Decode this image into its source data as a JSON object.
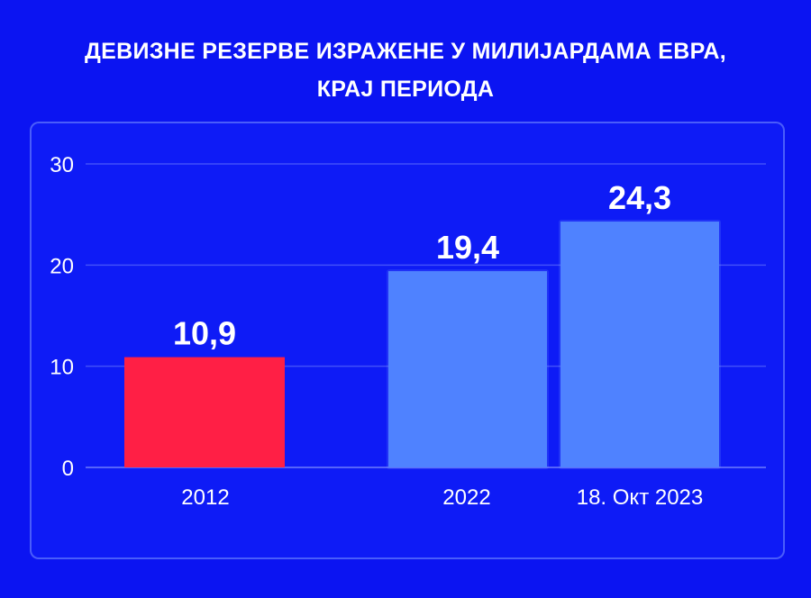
{
  "title_lines": [
    "ДЕВИЗНЕ РЕЗЕРВЕ ИЗРАЖЕНЕ У МИЛИЈАРДАМА ЕВРА,",
    "КРАЈ ПЕРИОДА"
  ],
  "colors": {
    "background": "#0b14f2",
    "highlight_bar": "#ff1f45",
    "bar": "#4f82ff",
    "text": "#ffffff"
  },
  "chart_data": {
    "type": "bar",
    "categories": [
      "2012",
      "2022",
      "18. Окт 2023"
    ],
    "values": [
      10.9,
      19.4,
      24.3
    ],
    "value_labels": [
      "10,9",
      "19,4",
      "24,3"
    ],
    "highlight_index": 0,
    "yticks": [
      "0",
      "10",
      "20",
      "30"
    ],
    "ylim": [
      0,
      30
    ],
    "grid": true
  }
}
